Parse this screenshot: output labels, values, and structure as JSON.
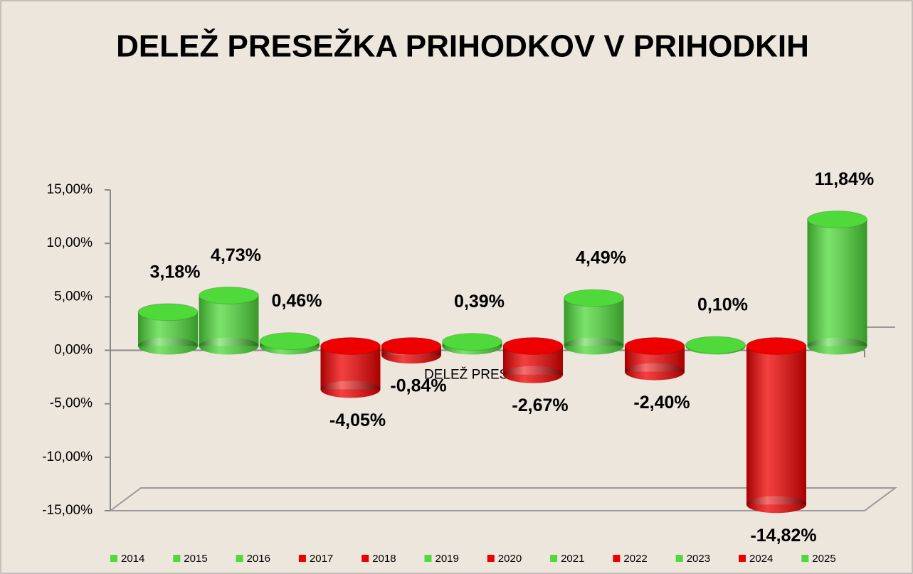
{
  "chart_data": {
    "type": "bar",
    "title": "DELEŽ PRESEŽKA PRIHODKOV V PRIHODKIH",
    "categories": [
      "DELEŽ PRESEŽKA"
    ],
    "ylim": [
      -15,
      15
    ],
    "yticks": [
      {
        "value": 15,
        "label": "15,00%"
      },
      {
        "value": 10,
        "label": "10,00%"
      },
      {
        "value": 5,
        "label": "5,00%"
      },
      {
        "value": 0,
        "label": "0,00%"
      },
      {
        "value": -5,
        "label": "-5,00%"
      },
      {
        "value": -10,
        "label": "-10,00%"
      },
      {
        "value": -15,
        "label": "-15,00%"
      }
    ],
    "series": [
      {
        "name": "2014",
        "color": "#4fd93a",
        "values": [
          3.18
        ],
        "value_labels": [
          "3,18%"
        ]
      },
      {
        "name": "2015",
        "color": "#4fd93a",
        "values": [
          4.73
        ],
        "value_labels": [
          "4,73%"
        ]
      },
      {
        "name": "2016",
        "color": "#4fd93a",
        "values": [
          0.46
        ],
        "value_labels": [
          "0,46%"
        ]
      },
      {
        "name": "2017",
        "color": "#ee0000",
        "values": [
          -4.05
        ],
        "value_labels": [
          "-4,05%"
        ]
      },
      {
        "name": "2018",
        "color": "#ee0000",
        "values": [
          -0.84
        ],
        "value_labels": [
          "-0,84%"
        ]
      },
      {
        "name": "2019",
        "color": "#4fd93a",
        "values": [
          0.39
        ],
        "value_labels": [
          "0,39%"
        ]
      },
      {
        "name": "2020",
        "color": "#ee0000",
        "values": [
          -2.67
        ],
        "value_labels": [
          "-2,67%"
        ]
      },
      {
        "name": "2021",
        "color": "#4fd93a",
        "values": [
          4.49
        ],
        "value_labels": [
          "4,49%"
        ]
      },
      {
        "name": "2022",
        "color": "#ee0000",
        "values": [
          -2.4
        ],
        "value_labels": [
          "-2,40%"
        ]
      },
      {
        "name": "2023",
        "color": "#4fd93a",
        "values": [
          0.1
        ],
        "value_labels": [
          "0,10%"
        ]
      },
      {
        "name": "2024",
        "color": "#ee0000",
        "values": [
          -14.82
        ],
        "value_labels": [
          "-14,82%"
        ]
      },
      {
        "name": "2025",
        "color": "#4fd93a",
        "values": [
          11.84
        ],
        "value_labels": [
          "11,84%"
        ]
      }
    ]
  }
}
